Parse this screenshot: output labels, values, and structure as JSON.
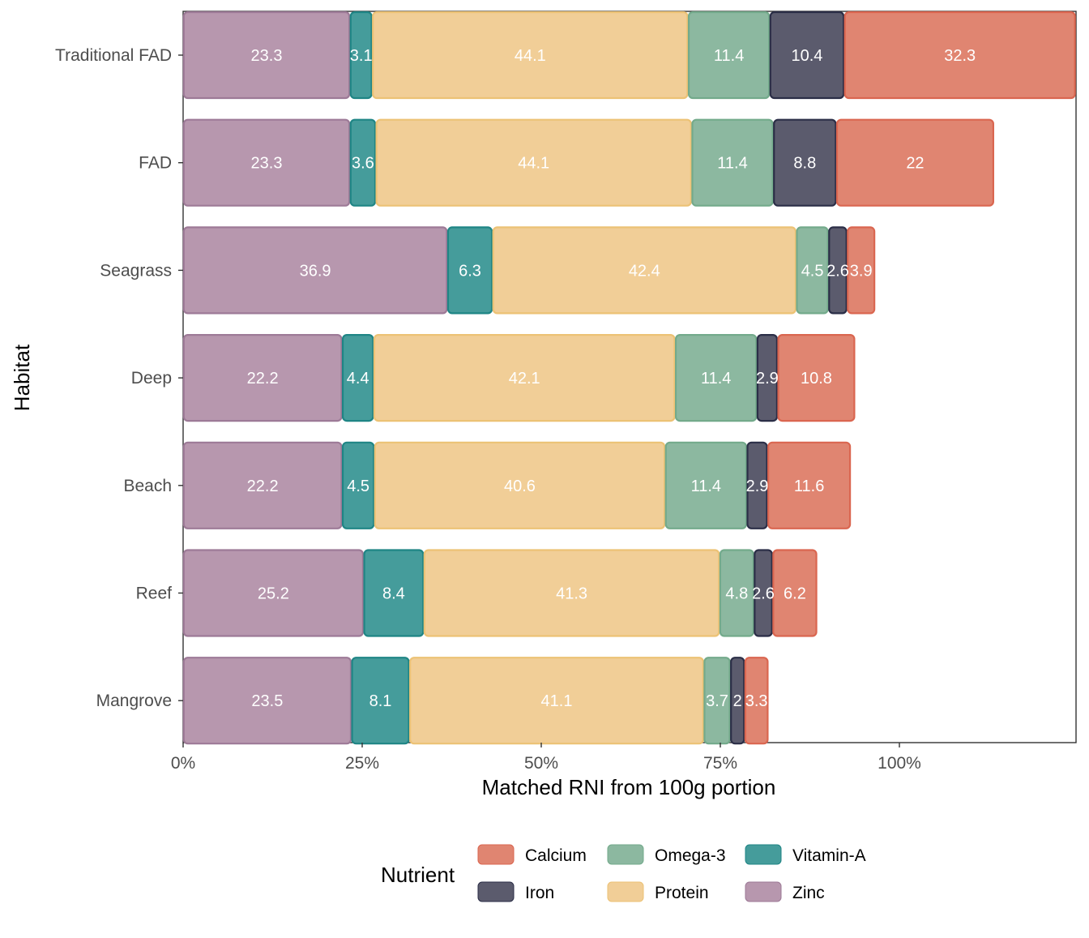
{
  "chart_data": {
    "type": "bar",
    "orientation": "horizontal",
    "stacked": true,
    "title": "",
    "xlabel": "Matched RNI from 100g portion",
    "ylabel": "Habitat",
    "x_unit": "percent",
    "xlim": [
      0,
      124.5
    ],
    "x_ticks": [
      0,
      25,
      50,
      75,
      100
    ],
    "x_tick_labels": [
      "0%",
      "25%",
      "50%",
      "75%",
      "100%"
    ],
    "grid": false,
    "categories": [
      "Traditional FAD",
      "FAD",
      "Seagrass",
      "Deep",
      "Beach",
      "Reef",
      "Mangrove"
    ],
    "stack_order": [
      "Zinc",
      "Vitamin-A",
      "Protein",
      "Omega-3",
      "Iron",
      "Calcium"
    ],
    "series": [
      {
        "name": "Zinc",
        "values": [
          23.3,
          23.3,
          36.9,
          22.2,
          22.2,
          25.2,
          23.5
        ],
        "labels": [
          "23.3",
          "23.3",
          "36.9",
          "22.2",
          "22.2",
          "25.2",
          "23.5"
        ]
      },
      {
        "name": "Vitamin-A",
        "values": [
          3.1,
          3.6,
          6.3,
          4.4,
          4.5,
          8.4,
          8.1
        ],
        "labels": [
          "3.1",
          "3.6",
          "6.3",
          "4.4",
          "4.5",
          "8.4",
          "8.1"
        ]
      },
      {
        "name": "Protein",
        "values": [
          44.1,
          44.1,
          42.4,
          42.1,
          40.6,
          41.3,
          41.1
        ],
        "labels": [
          "44.1",
          "44.1",
          "42.4",
          "42.1",
          "40.6",
          "41.3",
          "41.1"
        ]
      },
      {
        "name": "Omega-3",
        "values": [
          11.4,
          11.4,
          4.5,
          11.4,
          11.4,
          4.8,
          3.7
        ],
        "labels": [
          "11.4",
          "11.4",
          "4.5",
          "11.4",
          "11.4",
          "4.8",
          "3.7"
        ]
      },
      {
        "name": "Iron",
        "values": [
          10.4,
          8.8,
          2.6,
          2.9,
          2.9,
          2.6,
          2
        ],
        "labels": [
          "10.4",
          "8.8",
          "2.6",
          "2.9",
          "2.9",
          "2.6",
          "2"
        ]
      },
      {
        "name": "Calcium",
        "values": [
          32.3,
          22,
          3.9,
          10.8,
          11.6,
          6.2,
          3.3
        ],
        "labels": [
          "32.3",
          "22",
          "3.9",
          "10.8",
          "11.6",
          "6.2",
          "3.3"
        ]
      }
    ],
    "colors": {
      "Zinc": {
        "fill": "#b797ae",
        "stroke": "#9d7a97"
      },
      "Vitamin-A": {
        "fill": "#459c9b",
        "stroke": "#1f8585"
      },
      "Protein": {
        "fill": "#f1ce97",
        "stroke": "#ecc275"
      },
      "Omega-3": {
        "fill": "#8cb8a0",
        "stroke": "#73aa8b"
      },
      "Iron": {
        "fill": "#5b5b6d",
        "stroke": "#2b2e47"
      },
      "Calcium": {
        "fill": "#e08571",
        "stroke": "#da6650"
      }
    },
    "legend": {
      "title": "Nutrient",
      "position": "bottom",
      "items": [
        "Calcium",
        "Omega-3",
        "Vitamin-A",
        "Iron",
        "Protein",
        "Zinc"
      ]
    }
  }
}
